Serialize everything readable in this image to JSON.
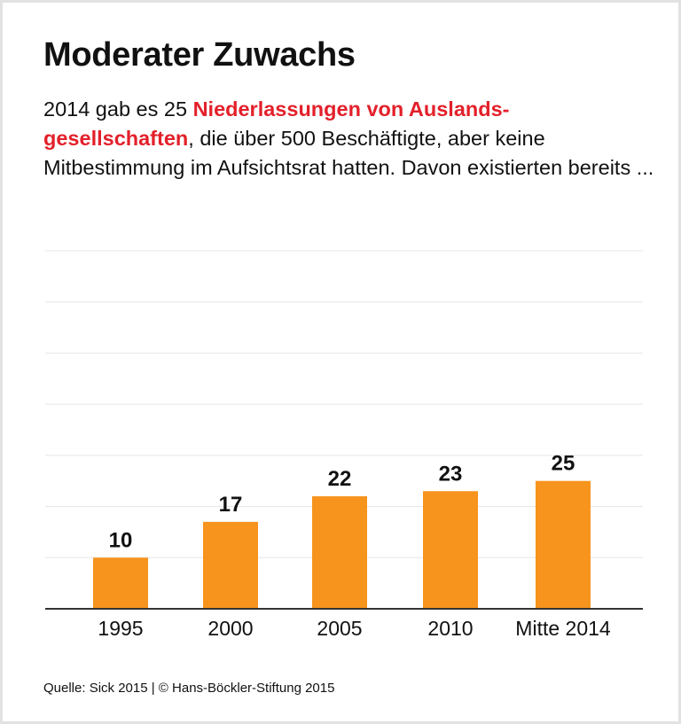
{
  "title": "Moderater Zuwachs",
  "intro": {
    "before": "2014 gab es 25 ",
    "highlight": "Niederlassungen von Auslands-gesellschaften",
    "after": ", die über 500 Beschäftigte, aber keine Mitbestimmung im Aufsichtsrat hatten. Davon existierten bereits ..."
  },
  "source": "Quelle: Sick 2015 | © Hans-Böckler-Stiftung 2015",
  "colors": {
    "bar": "#f7941d",
    "highlight": "#e3202a",
    "grid": "#e6e6e6",
    "axis": "#333333"
  },
  "chart_data": {
    "type": "bar",
    "categories": [
      "1995",
      "2000",
      "2005",
      "2010",
      "Mitte 2014"
    ],
    "values": [
      10,
      17,
      22,
      23,
      25
    ],
    "ylim": [
      0,
      70
    ],
    "grid": true,
    "data_labels": true
  }
}
